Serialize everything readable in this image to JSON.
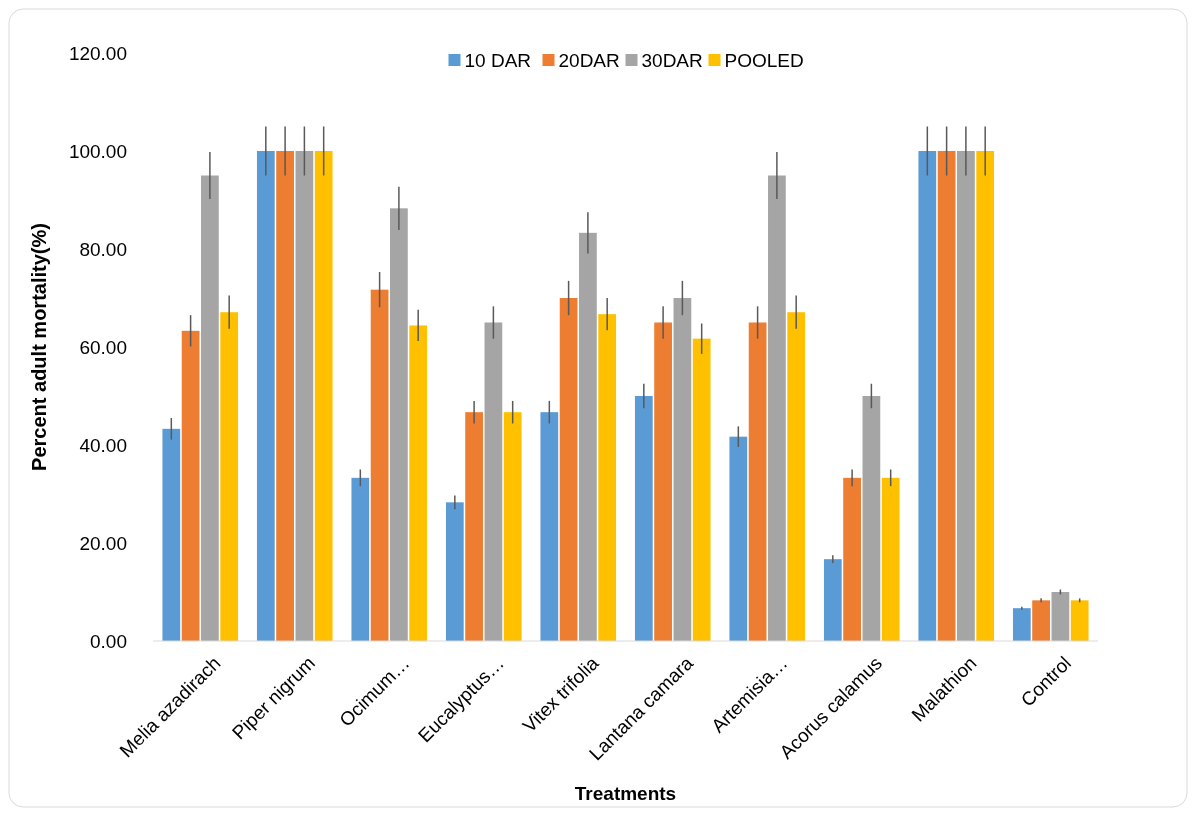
{
  "chart_data": {
    "type": "bar",
    "xlabel": "Treatments",
    "ylabel": "Percent adult mortality(%)",
    "categories": [
      "Melia azadirach",
      "Piper nigrum",
      "Ocimum…",
      "Eucalyptus…",
      "Vitex trifolia",
      "Lantana camara",
      "Artemisia…",
      "Acorus calamus",
      "Malathion",
      "Control"
    ],
    "series": [
      {
        "name": "10 DAR",
        "color": "#5b9bd5",
        "values": [
          43.3,
          100,
          33.3,
          28.3,
          46.7,
          50,
          41.7,
          16.7,
          100,
          6.7
        ],
        "errors": [
          2.2,
          5,
          1.7,
          1.4,
          2.3,
          2.5,
          2.1,
          0.8,
          5,
          0.3
        ]
      },
      {
        "name": "20DAR",
        "color": "#ed7d31",
        "values": [
          63.3,
          100,
          71.7,
          46.7,
          70,
          65,
          65,
          33.3,
          100,
          8.3
        ],
        "errors": [
          3.2,
          5,
          3.6,
          2.3,
          3.5,
          3.3,
          3.3,
          1.7,
          5,
          0.4
        ]
      },
      {
        "name": "30DAR",
        "color": "#a5a5a5",
        "values": [
          95,
          100,
          88.3,
          65,
          83.3,
          70,
          95,
          50,
          100,
          10
        ],
        "errors": [
          4.8,
          5,
          4.4,
          3.3,
          4.2,
          3.5,
          4.8,
          2.5,
          5,
          0.5
        ]
      },
      {
        "name": "POOLED",
        "color": "#ffc000",
        "values": [
          67.1,
          100,
          64.4,
          46.7,
          66.7,
          61.7,
          67.1,
          33.3,
          100,
          8.3
        ],
        "errors": [
          3.4,
          5,
          3.2,
          2.3,
          3.3,
          3.1,
          3.4,
          1.7,
          5,
          0.4
        ]
      }
    ],
    "ylim": [
      0,
      120
    ],
    "yticks": [
      {
        "value": 0,
        "label": "0.00"
      },
      {
        "value": 20,
        "label": "20.00"
      },
      {
        "value": 40,
        "label": "40.00"
      },
      {
        "value": 60,
        "label": "60.00"
      },
      {
        "value": 80,
        "label": "80.00"
      },
      {
        "value": 100,
        "label": "100.00"
      },
      {
        "value": 120,
        "label": "120.00"
      }
    ],
    "legend": "top"
  }
}
